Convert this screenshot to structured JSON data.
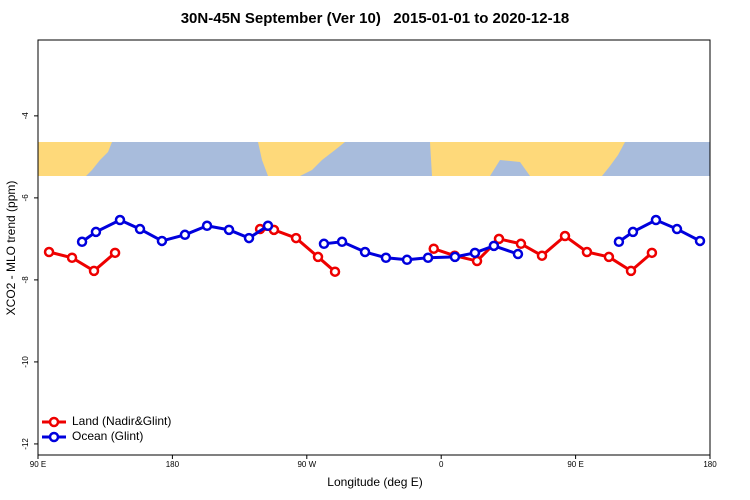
{
  "chart_data": {
    "type": "line",
    "title": "30N-45N September (Ver 10)   2015-01-01 to 2020-12-18",
    "x_label": "Longitude (deg E)",
    "y_label": "XCO2 - MLO trend (ppm)",
    "xlim": [
      90,
      540
    ],
    "ylim": [
      -12.27,
      -2.15
    ],
    "xticks": [
      {
        "value": 90,
        "label": "90 E"
      },
      180,
      {
        "value": 270,
        "label": "90 W"
      },
      {
        "value": 360,
        "label": "0"
      },
      {
        "value": 450,
        "label": "90 E"
      },
      {
        "value": 540,
        "label": "180"
      }
    ],
    "yticks": [
      -4,
      -6,
      -8,
      -10,
      -12
    ],
    "legend": "bottom-left",
    "series": [
      {
        "name": "Land (Nadir&Glint)",
        "color": "#ee0000",
        "x": [
          97.4,
          112.8,
          127.5,
          141.6,
          null,
          238.7,
          248,
          262.8,
          277.5,
          288.9,
          null,
          355,
          369,
          384,
          398.7,
          413.4,
          427.5,
          442.9,
          457.6,
          472.3,
          487.1,
          501.1
        ],
        "values": [
          -7.32,
          -7.46,
          -7.78,
          -7.34,
          null,
          -6.76,
          -6.78,
          -6.98,
          -7.44,
          -7.8,
          null,
          -7.24,
          -7.41,
          -7.54,
          -7.0,
          -7.12,
          -7.41,
          -6.93,
          -7.32,
          -7.44,
          -7.78,
          -7.34
        ]
      },
      {
        "name": "Ocean (Glint)",
        "color": "#0000dd",
        "x": [
          119.5,
          128.8,
          144.9,
          158.3,
          173,
          188.4,
          203.2,
          217.9,
          231.3,
          244,
          null,
          281.5,
          293.6,
          309,
          323,
          337.1,
          351.2,
          369.2,
          382.6,
          395.3,
          411.4,
          null,
          479,
          488.4,
          503.8,
          517.9,
          533.3
        ],
        "values": [
          -7.07,
          -6.83,
          -6.54,
          -6.76,
          -7.05,
          -6.9,
          -6.68,
          -6.78,
          -6.98,
          -6.68,
          null,
          -7.12,
          -7.07,
          -7.32,
          -7.46,
          -7.51,
          -7.46,
          -7.44,
          -7.34,
          -7.17,
          -7.37,
          null,
          -7.07,
          -6.83,
          -6.54,
          -6.76,
          -7.05
        ]
      }
    ]
  }
}
